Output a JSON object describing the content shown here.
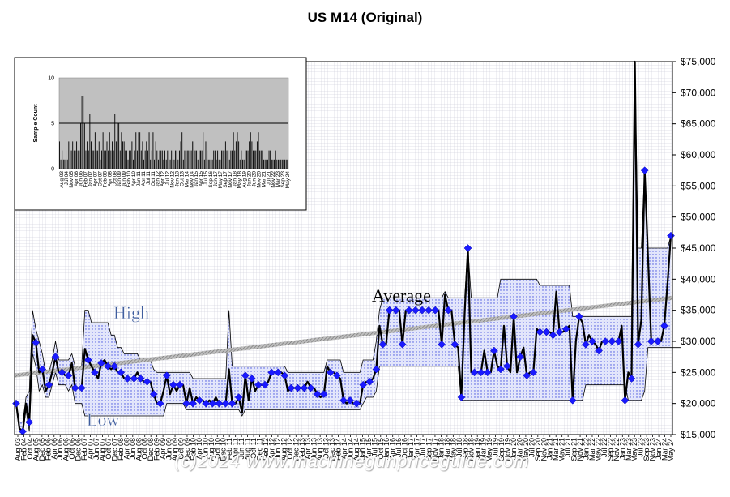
{
  "title": "US M14 (Original)",
  "watermark": "(c)2024 www.machinegunpriceguide.com",
  "annotations": {
    "high": "High",
    "low": "Low",
    "average": "Average"
  },
  "colors": {
    "marker": "#1a1aff",
    "band": "#1f2fd6",
    "line": "#000000",
    "trend": "#777777",
    "grid": "#9a9ab0"
  },
  "chart_data": [
    {
      "type": "line",
      "title": "US M14 (Original)",
      "ylabel": "",
      "ylim": [
        15000,
        75000
      ],
      "yticks": [
        "$15,000",
        "$20,000",
        "$25,000",
        "$30,000",
        "$35,000",
        "$40,000",
        "$45,000",
        "$50,000",
        "$55,000",
        "$60,000",
        "$65,000",
        "$70,000",
        "$75,000"
      ],
      "xticks": [
        "Aug 03",
        "Feb 04",
        "Oct 04",
        "Aug 05",
        "Dec 05",
        "Feb 06",
        "Apr 06",
        "Jun 06",
        "Aug 06",
        "Oct 06",
        "Dec 06",
        "Feb 07",
        "Apr 07",
        "Jun 07",
        "Aug 07",
        "Oct 07",
        "Dec 07",
        "Feb 08",
        "Apr 08",
        "Jun 08",
        "Aug 08",
        "Oct 08",
        "Dec 08",
        "Feb 09",
        "Apr 09",
        "Jun 09",
        "Aug 09",
        "Oct 09",
        "Dec 09",
        "Feb 10",
        "Apr 10",
        "Jun 10",
        "Aug 10",
        "Oct 10",
        "Dec 10",
        "Feb 11",
        "Apr 11",
        "Jun 11",
        "Aug 11",
        "Oct 11",
        "Dec 11",
        "Feb 12",
        "Apr 12",
        "Jun 12",
        "Aug 12",
        "Oct 12",
        "Dec 12",
        "Feb 13",
        "Apr 13",
        "Jun 13",
        "Aug 13",
        "Oct 13",
        "Dec 13",
        "Feb 14",
        "Apr 14",
        "Jun 14",
        "Aug 14",
        "Jan 15",
        "Apr 15",
        "Jul 15",
        "Oct 15",
        "Jan 16",
        "Apr 16",
        "Jul 16",
        "Oct 16",
        "Jan 17",
        "Apr 17",
        "Jul 17",
        "Sep 17",
        "Nov 17",
        "Jan 18",
        "Mar 18",
        "May 18",
        "Jul 18",
        "Sep 18",
        "Nov 18",
        "Jan 19",
        "Mar 19",
        "May 19",
        "Jul 19",
        "Sep 19",
        "Nov 19",
        "Jan 20",
        "Mar 20",
        "May 20",
        "Jul 20",
        "Sep 20",
        "Nov 20",
        "Jan 21",
        "Mar 21",
        "May 21",
        "Jul 21",
        "Sep 21",
        "Nov 21",
        "Jan 22",
        "Mar 22",
        "May 22",
        "Jul 22",
        "Sep 22",
        "Nov 22",
        "Jan 23",
        "Mar 23",
        "May 23",
        "Jul 23",
        "Sep 23",
        "Nov 23",
        "Jan 24",
        "Mar 24",
        "May 24"
      ],
      "series": [
        {
          "name": "Average",
          "values": [
            20000,
            16000,
            15500,
            20000,
            17000,
            31000,
            29800,
            25000,
            25500,
            22000,
            23000,
            25000,
            27500,
            25000,
            25000,
            24500,
            24500,
            26500,
            22500,
            22500,
            22500,
            28800,
            27000,
            26000,
            25000,
            24000,
            26500,
            27000,
            26000,
            25500,
            26000,
            25000,
            25000,
            24000,
            24000,
            24000,
            24000,
            25000,
            24000,
            23500,
            23500,
            23500,
            21500,
            20000,
            20000,
            22000,
            24500,
            21500,
            23000,
            22000,
            23000,
            23000,
            20000,
            22500,
            20000,
            21000,
            20500,
            20500,
            20000,
            20500,
            20000,
            21000,
            20000,
            20000,
            20000,
            25500,
            20000,
            20000,
            21000,
            18500,
            24500,
            20500,
            24000,
            22000,
            23000,
            23000,
            23000,
            23500,
            25000,
            25000,
            25000,
            25000,
            24500,
            22000,
            22500,
            22500,
            22500,
            22500,
            22500,
            23500,
            22500,
            22500,
            21500,
            21000,
            21500,
            26000,
            25000,
            25000,
            24500,
            24000,
            20500,
            20000,
            20500,
            20000,
            20000,
            20000,
            23000,
            23500,
            23500,
            24000,
            25500,
            32500,
            29500,
            29500,
            35000,
            35000,
            35000,
            35000,
            29500,
            35000,
            35000,
            35000,
            35000,
            35000,
            35000,
            35000,
            35000,
            35000,
            35000,
            35000,
            29500,
            37500,
            35000,
            35000,
            29500,
            29000,
            21000,
            34500,
            45000,
            25000,
            25000,
            25000,
            25000,
            28500,
            25000,
            25000,
            28500,
            26000,
            25500,
            32500,
            26000,
            25000,
            34000,
            25000,
            27500,
            29000,
            24500,
            25000,
            25000,
            32000,
            31500,
            31500,
            31500,
            31500,
            31000,
            38000,
            31500,
            31500,
            32000,
            32500,
            20500,
            30000,
            34000,
            33000,
            29500,
            31000,
            30000,
            29500,
            28500,
            30000,
            30000,
            30000,
            30000,
            30000,
            30000,
            32500,
            20500,
            25000,
            24000,
            75000,
            29500,
            33500,
            57500,
            44000,
            30000,
            30000,
            30000,
            30000,
            32500,
            39500,
            47000
          ]
        },
        {
          "name": "High",
          "values": [
            20000,
            17000,
            17000,
            21000,
            22000,
            35000,
            32000,
            30000,
            28000,
            25000,
            25000,
            27000,
            30000,
            27000,
            27000,
            27000,
            27000,
            28000,
            26000,
            26000,
            26000,
            35000,
            35000,
            33000,
            33000,
            33000,
            33000,
            33000,
            33000,
            31000,
            31000,
            29000,
            29000,
            28000,
            28000,
            28000,
            28000,
            28000,
            27000,
            27000,
            27000,
            27000,
            25500,
            25000,
            25000,
            25000,
            25000,
            25000,
            25000,
            25000,
            25000,
            25000,
            25000,
            25000,
            24000,
            24000,
            24000,
            24000,
            24000,
            24000,
            24000,
            24000,
            24000,
            24000,
            24000,
            35000,
            26000,
            26000,
            26000,
            26000,
            26000,
            26000,
            26000,
            26000,
            26000,
            26000,
            26000,
            26000,
            26000,
            26000,
            26000,
            26000,
            26000,
            25000,
            25000,
            25000,
            25000,
            25000,
            25000,
            25000,
            25000,
            25000,
            25000,
            25000,
            25000,
            27000,
            27000,
            27000,
            27000,
            27000,
            25000,
            25000,
            25000,
            25000,
            25000,
            25000,
            27000,
            27000,
            27000,
            27000,
            30000,
            35000,
            37000,
            37000,
            37000,
            37000,
            37000,
            37000,
            37000,
            37000,
            37000,
            37000,
            37000,
            37000,
            37000,
            37000,
            37000,
            37000,
            37000,
            37000,
            37000,
            38000,
            37000,
            37000,
            37000,
            37000,
            37000,
            37000,
            45000,
            37000,
            37000,
            37000,
            37000,
            37000,
            37000,
            37000,
            37000,
            37000,
            40000,
            40000,
            40000,
            40000,
            40000,
            40000,
            40000,
            40000,
            40000,
            40000,
            40000,
            40000,
            39000,
            39000,
            39000,
            39000,
            39000,
            39000,
            39000,
            39000,
            39000,
            39000,
            34000,
            34000,
            34000,
            34000,
            34000,
            34000,
            34000,
            34000,
            34000,
            34000,
            34000,
            34000,
            34000,
            34000,
            34000,
            34000,
            34000,
            34000,
            34000,
            75000,
            45000,
            45000,
            58000,
            45000,
            45000,
            45000,
            45000,
            45000,
            45000,
            45000,
            47000
          ]
        },
        {
          "name": "Low",
          "values": [
            20000,
            15500,
            15000,
            19000,
            15500,
            28000,
            26000,
            22000,
            23000,
            21000,
            21000,
            23000,
            25000,
            23000,
            23000,
            23000,
            22000,
            23000,
            20000,
            20000,
            20000,
            18000,
            18000,
            18000,
            18000,
            18000,
            18000,
            18000,
            18000,
            18000,
            18000,
            18000,
            18000,
            18000,
            18000,
            18000,
            18000,
            18000,
            18000,
            18000,
            18000,
            18000,
            18000,
            18000,
            18000,
            18000,
            20000,
            20000,
            20000,
            20000,
            20000,
            20000,
            19000,
            19000,
            19000,
            19000,
            19000,
            19000,
            19000,
            19000,
            19000,
            19000,
            19000,
            19000,
            19000,
            19000,
            19000,
            19000,
            19000,
            18000,
            19000,
            19000,
            19000,
            19000,
            19000,
            19000,
            19000,
            19000,
            19000,
            19000,
            19000,
            19000,
            19000,
            19000,
            19000,
            19000,
            19000,
            19000,
            19000,
            19000,
            19000,
            19000,
            19000,
            19000,
            19000,
            19000,
            19000,
            19000,
            19000,
            19000,
            19000,
            19000,
            19000,
            19000,
            19000,
            19000,
            20000,
            21000,
            21000,
            21000,
            22000,
            26000,
            26000,
            26000,
            26000,
            26000,
            26000,
            26000,
            26000,
            26000,
            26000,
            26000,
            26000,
            26000,
            26000,
            26000,
            26000,
            26000,
            26000,
            26000,
            26000,
            26000,
            26000,
            26000,
            26000,
            26000,
            20500,
            20500,
            20500,
            20500,
            20500,
            20500,
            20500,
            20500,
            20500,
            20500,
            20500,
            20500,
            20500,
            20500,
            20500,
            20500,
            20500,
            20500,
            20500,
            20500,
            20500,
            20500,
            20500,
            20500,
            20500,
            20500,
            20500,
            20500,
            20500,
            20500,
            20500,
            20500,
            20500,
            20500,
            20500,
            20500,
            20500,
            20500,
            23000,
            23000,
            23000,
            23000,
            23000,
            23000,
            23000,
            23000,
            23000,
            23000,
            23000,
            23000,
            23000,
            20500,
            20500,
            20500,
            20500,
            20500,
            22000,
            29000,
            29000,
            29000,
            29000,
            29000,
            29000,
            29000,
            29000,
            29000,
            29000,
            29000
          ]
        }
      ],
      "trend": {
        "name": "Trend",
        "start": 24500,
        "end": 37000
      }
    },
    {
      "type": "bar",
      "title": "",
      "ylabel": "Sample Count",
      "ylim": [
        0,
        10
      ],
      "yticks": [
        "0",
        "5",
        "10"
      ],
      "reference_line": 5,
      "xticks": [
        "Aug 03",
        "Jul 04",
        "Nov 05",
        "Apr 06",
        "Jun 06",
        "Feb 07",
        "Jan 07",
        "Apr 07",
        "Oct 07",
        "Feb 08",
        "Apr 08",
        "Oct 08",
        "Jan 09",
        "Jun 09",
        "Feb 10",
        "Apr 10",
        "Jan 11",
        "Apr 11",
        "Jul 11",
        "Oct 11",
        "Jan 12",
        "Apr 12",
        "Jul 12",
        "Nov 12",
        "Jan 13",
        "Oct 13",
        "Mar 14",
        "Nov 14",
        "Jan 15",
        "Apr 15",
        "Jul 15",
        "Sep 16",
        "Jan 17",
        "May 17",
        "Sep 17",
        "Nov 17",
        "Jan 18",
        "May 18",
        "Aug 19",
        "Jan 20",
        "Jun 20",
        "Nov 20",
        "Mar 21",
        "Jul 21",
        "Nov 22",
        "Mar 23",
        "Sep 23",
        "May 24"
      ],
      "values": [
        3,
        1,
        2,
        1,
        1,
        2,
        1,
        3,
        1,
        2,
        3,
        2,
        2,
        3,
        2,
        2,
        5,
        8,
        8,
        5,
        2,
        3,
        2,
        6,
        3,
        2,
        2,
        4,
        2,
        2,
        3,
        1,
        2,
        4,
        2,
        2,
        3,
        2,
        4,
        2,
        3,
        2,
        6,
        3,
        5,
        5,
        2,
        4,
        3,
        3,
        2,
        2,
        1,
        2,
        2,
        3,
        1,
        2,
        4,
        2,
        4,
        4,
        2,
        3,
        1,
        2,
        3,
        2,
        4,
        1,
        2,
        4,
        1,
        3,
        2,
        1,
        2,
        2,
        2,
        1,
        2,
        1,
        2,
        2,
        1,
        2,
        1,
        1,
        2,
        2,
        1,
        2,
        3,
        4,
        1,
        2,
        2,
        2,
        2,
        1,
        2,
        3,
        3,
        2,
        2,
        1,
        2,
        2,
        2,
        4,
        1,
        3,
        2,
        1,
        1,
        2,
        1,
        2,
        2,
        1,
        2,
        1,
        1,
        2,
        2,
        2,
        3,
        2,
        2,
        1,
        2,
        2,
        4,
        2,
        3,
        4,
        3,
        1,
        2,
        1,
        1,
        2,
        2,
        2,
        3,
        4,
        3,
        2,
        2,
        2,
        3,
        4,
        2,
        2,
        2,
        1,
        1,
        1,
        1,
        2,
        2,
        1,
        1,
        1,
        2,
        1,
        1,
        1,
        1,
        1,
        1,
        1,
        1,
        1
      ]
    }
  ]
}
